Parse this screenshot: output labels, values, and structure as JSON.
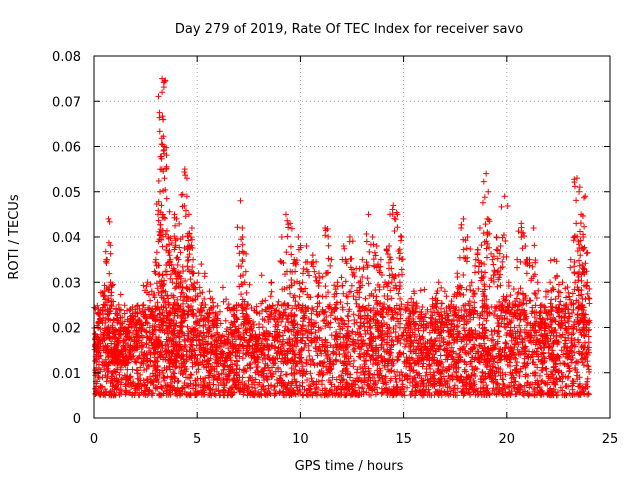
{
  "chart_data": {
    "type": "scatter",
    "title": "Day 279 of 2019, Rate Of TEC Index for receiver savo",
    "xlabel": "GPS time / hours",
    "ylabel": "ROTI / TECUs",
    "xlim": [
      0,
      25
    ],
    "ylim": [
      0,
      0.08
    ],
    "xticks": [
      0,
      5,
      10,
      15,
      20,
      25
    ],
    "yticks": [
      0,
      0.01,
      0.02,
      0.03,
      0.04,
      0.05,
      0.06,
      0.07,
      0.08
    ],
    "xtick_labels": [
      "0",
      "5",
      "10",
      "15",
      "20",
      "25"
    ],
    "ytick_labels": [
      "0",
      "0.01",
      "0.02",
      "0.03",
      "0.04",
      "0.05",
      "0.06",
      "0.07",
      "0.08"
    ],
    "grid": true,
    "marker": "+",
    "color": "#ff0000",
    "series": [
      {
        "name": "ROTI",
        "x": [
          0.1,
          0.3,
          0.5,
          0.6,
          0.7,
          0.8,
          0.9,
          1.0,
          1.1,
          1.2,
          1.4,
          1.6,
          1.8,
          2.0,
          2.2,
          2.4,
          2.6,
          2.8,
          3.0,
          3.1,
          3.2,
          3.3,
          3.3,
          3.35,
          3.4,
          3.5,
          3.6,
          3.7,
          3.8,
          3.9,
          4.0,
          4.1,
          4.2,
          4.3,
          4.4,
          4.5,
          4.6,
          4.7,
          4.8,
          5.0,
          5.2,
          5.4,
          5.6,
          5.8,
          6.0,
          6.3,
          6.6,
          6.9,
          7.1,
          7.2,
          7.3,
          7.5,
          7.8,
          8.0,
          8.3,
          8.6,
          8.9,
          9.1,
          9.3,
          9.5,
          9.7,
          9.9,
          10.1,
          10.3,
          10.6,
          10.9,
          11.2,
          11.5,
          11.8,
          12.1,
          12.4,
          12.7,
          13.0,
          13.3,
          13.5,
          13.7,
          13.9,
          14.1,
          14.3,
          14.5,
          14.7,
          14.9,
          15.2,
          15.5,
          15.8,
          16.1,
          16.4,
          16.7,
          17.0,
          17.3,
          17.6,
          17.9,
          18.1,
          18.3,
          18.5,
          18.7,
          18.9,
          19.0,
          19.1,
          19.3,
          19.5,
          19.7,
          19.9,
          20.1,
          20.3,
          20.5,
          20.7,
          20.9,
          21.1,
          21.3,
          21.5,
          21.7,
          21.9,
          22.1,
          22.3,
          22.5,
          22.7,
          22.9,
          23.1,
          23.3,
          23.4,
          23.5,
          23.6,
          23.7,
          23.8,
          23.9
        ],
        "y": [
          0.018,
          0.022,
          0.028,
          0.035,
          0.044,
          0.03,
          0.02,
          0.015,
          0.022,
          0.025,
          0.02,
          0.018,
          0.022,
          0.024,
          0.02,
          0.025,
          0.03,
          0.028,
          0.035,
          0.045,
          0.05,
          0.075,
          0.072,
          0.066,
          0.06,
          0.055,
          0.04,
          0.035,
          0.03,
          0.045,
          0.044,
          0.035,
          0.03,
          0.04,
          0.055,
          0.049,
          0.045,
          0.04,
          0.035,
          0.03,
          0.034,
          0.025,
          0.028,
          0.02,
          0.022,
          0.018,
          0.02,
          0.025,
          0.048,
          0.04,
          0.03,
          0.022,
          0.018,
          0.02,
          0.026,
          0.03,
          0.025,
          0.04,
          0.045,
          0.043,
          0.035,
          0.04,
          0.03,
          0.038,
          0.036,
          0.032,
          0.042,
          0.035,
          0.03,
          0.038,
          0.04,
          0.033,
          0.035,
          0.045,
          0.04,
          0.038,
          0.035,
          0.03,
          0.038,
          0.047,
          0.045,
          0.04,
          0.025,
          0.028,
          0.022,
          0.02,
          0.025,
          0.03,
          0.028,
          0.025,
          0.032,
          0.044,
          0.04,
          0.03,
          0.035,
          0.042,
          0.034,
          0.054,
          0.05,
          0.035,
          0.04,
          0.038,
          0.049,
          0.03,
          0.025,
          0.035,
          0.043,
          0.038,
          0.035,
          0.042,
          0.03,
          0.025,
          0.028,
          0.03,
          0.035,
          0.028,
          0.03,
          0.025,
          0.035,
          0.04,
          0.053,
          0.05,
          0.045,
          0.04,
          0.049,
          0.03
        ],
        "baseline_band": [
          0.005,
          0.025
        ]
      }
    ]
  }
}
